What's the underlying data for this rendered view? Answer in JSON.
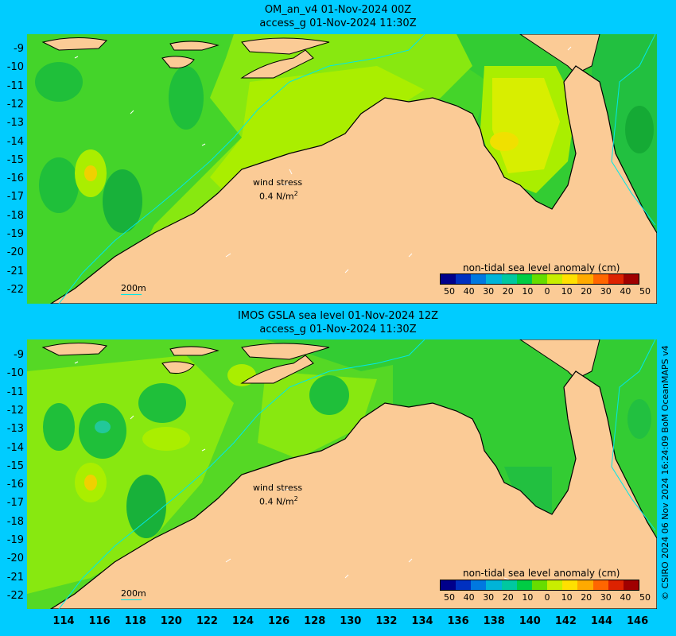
{
  "panels": [
    {
      "title_line1": "OM_an_v4  01-Nov-2024 00Z",
      "title_line2": "access_g 01-Nov-2024 11:30Z",
      "wind_label": "wind stress",
      "wind_value": "0.4 N/m",
      "wind_unit_sup": "2",
      "scale_label": "200m",
      "colorbar_title": "non-tidal sea level anomaly (cm)"
    },
    {
      "title_line1": "IMOS GSLA sea level  01-Nov-2024 12Z",
      "title_line2": "access_g 01-Nov-2024 11:30Z",
      "wind_label": "wind stress",
      "wind_value": "0.4 N/m",
      "wind_unit_sup": "2",
      "scale_label": "200m",
      "colorbar_title": "non-tidal sea level anomaly (cm)"
    }
  ],
  "lat_labels": [
    "-9",
    "-10",
    "-11",
    "-12",
    "-13",
    "-14",
    "-15",
    "-16",
    "-17",
    "-18",
    "-19",
    "-20",
    "-21",
    "-22"
  ],
  "lon_labels": [
    "114",
    "116",
    "118",
    "120",
    "122",
    "124",
    "126",
    "128",
    "130",
    "132",
    "134",
    "136",
    "138",
    "140",
    "142",
    "144",
    "146"
  ],
  "colorbar_ticks": [
    "50",
    "40",
    "30",
    "20",
    "10",
    "0",
    "10",
    "20",
    "30",
    "40",
    "50"
  ],
  "colorbar_colors": [
    "#00008b",
    "#0030c0",
    "#0078e0",
    "#00b4d8",
    "#00c8a0",
    "#00cc44",
    "#66dd00",
    "#c8ee00",
    "#ffe000",
    "#ffaa00",
    "#ff6600",
    "#dd2200",
    "#a00000"
  ],
  "credit": "© CSIRO 2024  06 Nov 2024 16:24:09 BoM OceanMAPS v4",
  "colors": {
    "background": "#00ccff",
    "land": "#fbcb96",
    "coast": "#000000",
    "isobath": "#00e8e8"
  }
}
